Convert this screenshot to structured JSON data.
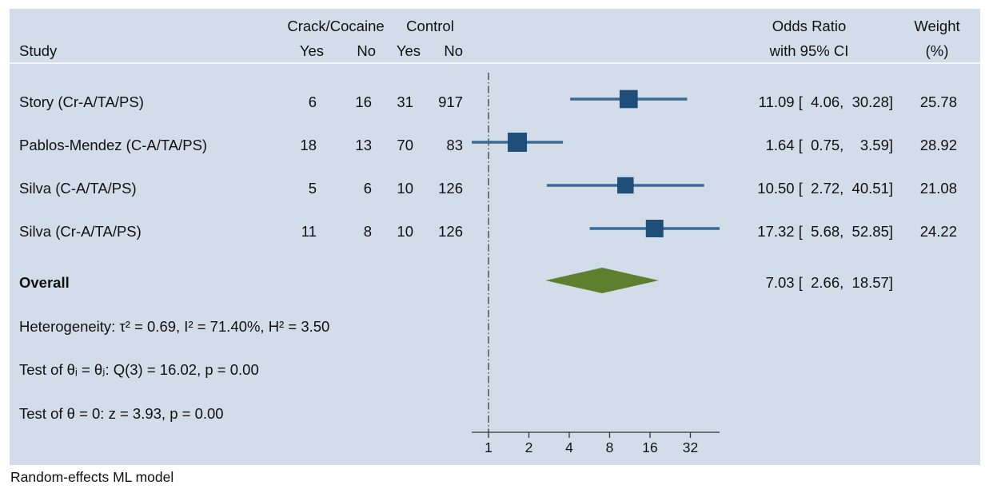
{
  "chart_data": {
    "type": "forest",
    "headers": {
      "study": "Study",
      "group1": "Crack/Cocaine",
      "group2": "Control",
      "yes": "Yes",
      "no": "No",
      "effect_line1": "Odds Ratio",
      "effect_line2": "with 95% CI",
      "weight_line1": "Weight",
      "weight_line2": "(%)"
    },
    "studies": [
      {
        "label": "Story (Cr-A/TA/PS)",
        "case_yes": "6",
        "case_no": "16",
        "ctrl_yes": "31",
        "ctrl_no": "917",
        "or": 11.09,
        "lo": 4.06,
        "hi": 30.28,
        "ci_text": "11.09 [  4.06,  30.28]",
        "weight": 25.78,
        "weight_text": "25.78"
      },
      {
        "label": "Pablos-Mendez (C-A/TA/PS)",
        "case_yes": "18",
        "case_no": "13",
        "ctrl_yes": "70",
        "ctrl_no": "83",
        "or": 1.64,
        "lo": 0.75,
        "hi": 3.59,
        "ci_text": "1.64 [  0.75,    3.59]",
        "weight": 28.92,
        "weight_text": "28.92"
      },
      {
        "label": "Silva (C-A/TA/PS)",
        "case_yes": "5",
        "case_no": "6",
        "ctrl_yes": "10",
        "ctrl_no": "126",
        "or": 10.5,
        "lo": 2.72,
        "hi": 40.51,
        "ci_text": "10.50 [  2.72,  40.51]",
        "weight": 21.08,
        "weight_text": "21.08"
      },
      {
        "label": "Silva (Cr-A/TA/PS)",
        "case_yes": "11",
        "case_no": "8",
        "ctrl_yes": "10",
        "ctrl_no": "126",
        "or": 17.32,
        "lo": 5.68,
        "hi": 52.85,
        "ci_text": "17.32 [  5.68,  52.85]",
        "weight": 24.22,
        "weight_text": "24.22"
      }
    ],
    "overall": {
      "label": "Overall",
      "or": 7.03,
      "lo": 2.66,
      "hi": 18.57,
      "ci_text": "7.03 [  2.66,  18.57]"
    },
    "notes": [
      "Heterogeneity: τ² = 0.69, I² = 71.40%, H² = 3.50",
      "Test of θᵢ = θⱼ: Q(3) = 16.02, p = 0.00",
      "Test of θ = 0: z = 3.93, p = 0.00"
    ],
    "x_axis": {
      "scale": "log2",
      "ticks": [
        1,
        2,
        4,
        8,
        16,
        32
      ],
      "tick_labels": [
        "1",
        "2",
        "4",
        "8",
        "16",
        "32"
      ],
      "range": [
        0.75,
        52.85
      ]
    },
    "null_line": 1,
    "footnote": "Random-effects ML model",
    "colors": {
      "background": "#d2dde9",
      "marker": "#1f4e79",
      "ci_line": "#3a6a96",
      "diamond": "#5e7f2d",
      "text": "#111111"
    }
  }
}
